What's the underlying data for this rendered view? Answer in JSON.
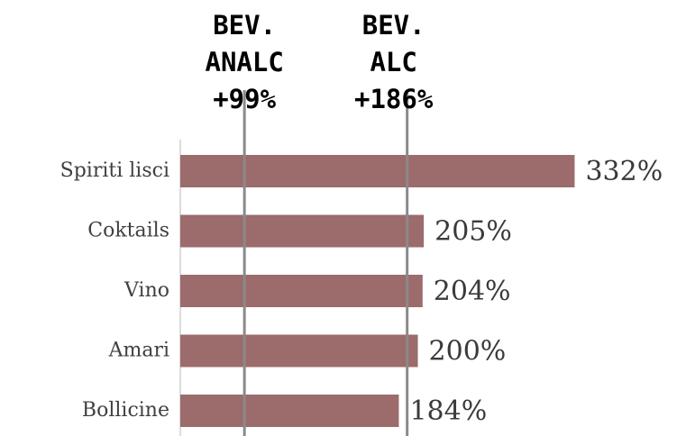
{
  "chart_data": {
    "type": "bar",
    "orientation": "horizontal",
    "categories": [
      "Spiriti lisci",
      "Coktails",
      "Vino",
      "Amari",
      "Bollicine"
    ],
    "values": [
      332,
      205,
      204,
      200,
      184
    ],
    "value_labels": [
      "332%",
      "205%",
      "204%",
      "200%",
      "184%"
    ],
    "color": "#9c6b6b",
    "xlim": [
      0,
      340
    ],
    "annotations": [
      {
        "lines": [
          "BEV.",
          "ANALC",
          "+99%"
        ],
        "x": 54
      },
      {
        "lines": [
          "BEV.",
          "ALC",
          "+186%"
        ],
        "x": 191
      }
    ]
  }
}
